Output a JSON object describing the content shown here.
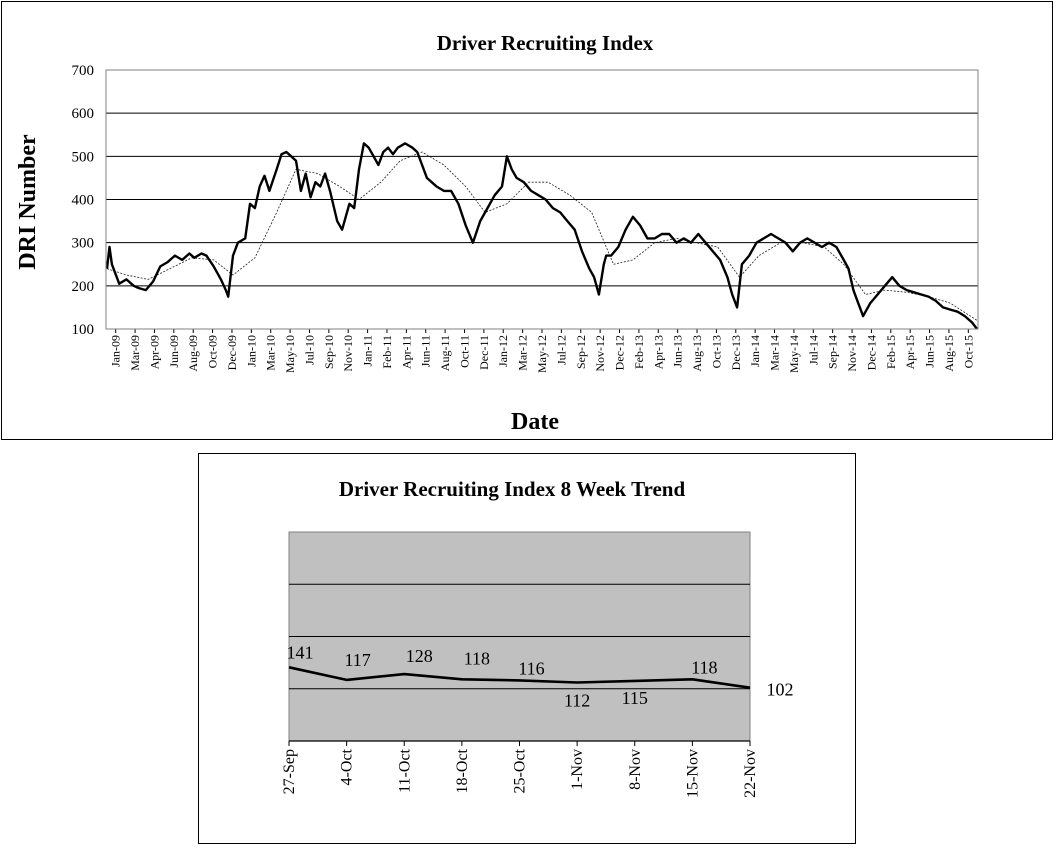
{
  "chart_data": [
    {
      "type": "line",
      "title": "Driver Recruiting Index",
      "xlabel": "Date",
      "ylabel": "DRI Number",
      "ylim": [
        100,
        700
      ],
      "yticks": [
        100,
        200,
        300,
        400,
        500,
        600,
        700
      ],
      "grid": "horizontal",
      "xtick_labels": [
        "Jan-09",
        "Mar-09",
        "Apr-09",
        "Jun-09",
        "Aug-09",
        "Oct-09",
        "Dec-09",
        "Jan-10",
        "Mar-10",
        "May-10",
        "Jul-10",
        "Sep-10",
        "Nov-10",
        "Jan-11",
        "Feb-11",
        "Apr-11",
        "Jun-11",
        "Aug-11",
        "Oct-11",
        "Dec-11",
        "Jan-12",
        "Mar-12",
        "May-12",
        "Jul-12",
        "Sep-12",
        "Nov-12",
        "Dec-12",
        "Feb-13",
        "Apr-13",
        "Jun-13",
        "Aug-13",
        "Oct-13",
        "Dec-13",
        "Jan-14",
        "Mar-14",
        "May-14",
        "Jul-14",
        "Sep-14",
        "Nov-14",
        "Dec-14",
        "Feb-15",
        "Apr-15",
        "Jun-15",
        "Aug-15",
        "Oct-15"
      ],
      "series": [
        {
          "style": "weekly",
          "x": [
            "2009-01-04",
            "2009-01-11",
            "2009-01-18",
            "2009-02-08",
            "2009-03-01",
            "2009-03-22",
            "2009-04-05",
            "2009-04-26",
            "2009-05-17",
            "2009-06-07",
            "2009-06-28",
            "2009-07-19",
            "2009-08-09",
            "2009-08-30",
            "2009-09-13",
            "2009-10-04",
            "2009-10-18",
            "2009-11-08",
            "2009-11-29",
            "2009-12-13",
            "2009-12-20",
            "2010-01-03",
            "2010-01-17",
            "2010-02-07",
            "2010-02-21",
            "2010-03-07",
            "2010-03-21",
            "2010-04-04",
            "2010-04-18",
            "2010-05-09",
            "2010-05-23",
            "2010-06-06",
            "2010-06-20",
            "2010-07-04",
            "2010-07-18",
            "2010-08-01",
            "2010-08-15",
            "2010-08-29",
            "2010-09-12",
            "2010-09-26",
            "2010-10-10",
            "2010-10-31",
            "2010-11-14",
            "2010-12-05",
            "2010-12-19",
            "2011-01-02",
            "2011-01-16",
            "2011-01-30",
            "2011-02-13",
            "2011-02-27",
            "2011-03-13",
            "2011-03-27",
            "2011-04-10",
            "2011-04-24",
            "2011-05-15",
            "2011-06-05",
            "2011-06-19",
            "2011-07-03",
            "2011-07-17",
            "2011-07-31",
            "2011-08-14",
            "2011-09-04",
            "2011-09-25",
            "2011-10-16",
            "2011-11-06",
            "2011-11-27",
            "2011-12-18",
            "2012-01-08",
            "2012-01-29",
            "2012-02-19",
            "2012-03-04",
            "2012-03-18",
            "2012-04-01",
            "2012-04-22",
            "2012-05-13",
            "2012-06-03",
            "2012-06-24",
            "2012-07-15",
            "2012-08-05",
            "2012-08-26",
            "2012-09-16",
            "2012-10-07",
            "2012-10-28",
            "2012-11-11",
            "2012-11-25",
            "2012-12-09",
            "2012-12-16",
            "2012-12-30",
            "2013-01-20",
            "2013-02-10",
            "2013-03-03",
            "2013-03-24",
            "2013-04-14",
            "2013-05-05",
            "2013-05-26",
            "2013-06-16",
            "2013-07-07",
            "2013-07-28",
            "2013-08-18",
            "2013-09-08",
            "2013-09-29",
            "2013-10-20",
            "2013-11-10",
            "2013-12-01",
            "2013-12-15",
            "2013-12-29",
            "2014-01-12",
            "2014-02-02",
            "2014-02-23",
            "2014-03-16",
            "2014-04-06",
            "2014-04-27",
            "2014-05-18",
            "2014-06-08",
            "2014-06-29",
            "2014-07-20",
            "2014-08-10",
            "2014-08-31",
            "2014-09-21",
            "2014-10-12",
            "2014-11-02",
            "2014-11-16",
            "2014-11-30",
            "2014-12-14",
            "2014-12-28",
            "2015-01-18",
            "2015-02-08",
            "2015-03-01",
            "2015-03-22",
            "2015-04-12",
            "2015-05-03",
            "2015-05-24",
            "2015-06-14",
            "2015-07-05",
            "2015-07-26",
            "2015-08-16",
            "2015-09-06",
            "2015-09-27",
            "2015-10-18",
            "2015-11-08",
            "2015-11-22"
          ],
          "y": [
            240,
            290,
            250,
            205,
            215,
            200,
            195,
            190,
            210,
            245,
            255,
            270,
            260,
            275,
            265,
            275,
            270,
            245,
            215,
            190,
            175,
            270,
            300,
            310,
            390,
            380,
            430,
            455,
            420,
            470,
            505,
            510,
            500,
            490,
            420,
            460,
            405,
            440,
            430,
            460,
            420,
            350,
            330,
            390,
            380,
            470,
            530,
            520,
            500,
            480,
            510,
            520,
            505,
            520,
            530,
            520,
            510,
            480,
            450,
            440,
            430,
            420,
            420,
            390,
            340,
            300,
            350,
            380,
            410,
            430,
            500,
            470,
            450,
            440,
            420,
            410,
            400,
            380,
            370,
            350,
            330,
            280,
            240,
            220,
            180,
            250,
            270,
            270,
            290,
            330,
            360,
            340,
            310,
            310,
            320,
            320,
            300,
            310,
            300,
            320,
            300,
            280,
            260,
            220,
            180,
            150,
            250,
            270,
            300,
            310,
            320,
            310,
            300,
            280,
            300,
            310,
            300,
            290,
            300,
            290,
            260,
            240,
            190,
            160,
            130,
            160,
            180,
            200,
            220,
            200,
            190,
            185,
            180,
            175,
            165,
            150,
            145,
            140,
            130,
            115,
            100
          ]
        },
        {
          "style": "moving-average",
          "x": [
            "2009-01-04",
            "2009-03-01",
            "2009-05-03",
            "2009-07-05",
            "2009-09-06",
            "2009-11-08",
            "2010-01-03",
            "2010-03-07",
            "2010-05-09",
            "2010-07-04",
            "2010-09-05",
            "2010-11-07",
            "2011-01-02",
            "2011-03-06",
            "2011-05-01",
            "2011-07-03",
            "2011-09-04",
            "2011-11-06",
            "2012-01-01",
            "2012-03-04",
            "2012-05-06",
            "2012-07-01",
            "2012-09-02",
            "2012-11-04",
            "2013-01-06",
            "2013-03-03",
            "2013-05-05",
            "2013-07-07",
            "2013-09-01",
            "2013-11-03",
            "2014-01-05",
            "2014-03-02",
            "2014-05-04",
            "2014-07-06",
            "2014-09-07",
            "2014-11-02",
            "2015-01-04",
            "2015-03-01",
            "2015-05-03",
            "2015-07-05",
            "2015-09-06",
            "2015-11-22"
          ],
          "y": [
            240,
            225,
            215,
            240,
            265,
            260,
            225,
            265,
            370,
            470,
            460,
            430,
            400,
            440,
            490,
            510,
            480,
            430,
            370,
            390,
            440,
            440,
            410,
            370,
            250,
            260,
            300,
            310,
            300,
            290,
            220,
            270,
            300,
            300,
            290,
            250,
            180,
            190,
            185,
            175,
            160,
            120
          ]
        }
      ]
    },
    {
      "type": "line",
      "title": "Driver Recruiting Index 8 Week Trend",
      "categories": [
        "27-Sep",
        "4-Oct",
        "11-Oct",
        "18-Oct",
        "25-Oct",
        "1-Nov",
        "8-Nov",
        "15-Nov",
        "22-Nov"
      ],
      "values": [
        141,
        117,
        128,
        118,
        116,
        112,
        115,
        118,
        102
      ],
      "value_labels": [
        "141",
        "117",
        "128",
        "118",
        "116",
        "112",
        "115",
        "118",
        "102"
      ],
      "grid": "horizontal",
      "background": "#c0c0c0"
    }
  ]
}
